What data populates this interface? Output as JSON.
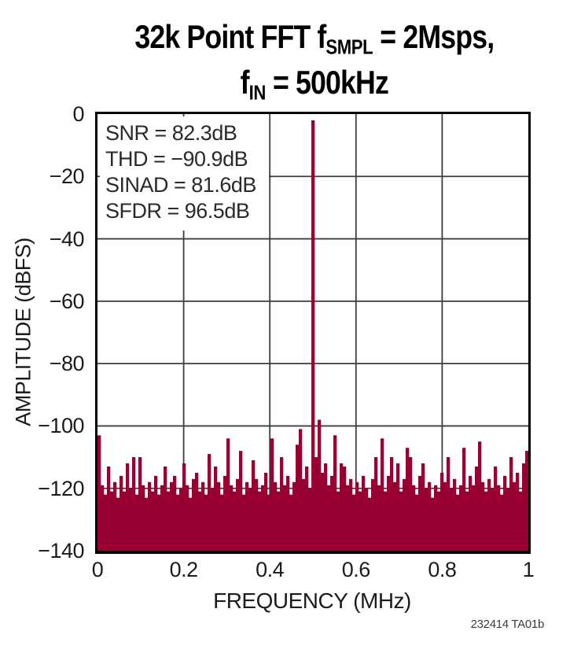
{
  "title": {
    "line1_pre": "32k Point FFT f",
    "line1_sub": "SMPL",
    "line1_post": " = 2Msps,",
    "line2_pre": "f",
    "line2_sub": "IN",
    "line2_post": " = 500kHz"
  },
  "footer": {
    "figure_number": "232414 TA01b"
  },
  "chart_data": {
    "type": "bar",
    "title": "32k Point FFT fSMPL = 2Msps, fIN = 500kHz",
    "xlabel": "FREQUENCY (MHz)",
    "ylabel": "AMPLITUDE (dBFS)",
    "xlim": [
      0,
      1
    ],
    "ylim": [
      -140,
      0
    ],
    "grid": true,
    "legend": "none",
    "xticks": [
      0,
      0.2,
      0.4,
      0.6,
      0.8,
      1
    ],
    "xtick_labels": [
      "0",
      "0.2",
      "0.4",
      "0.6",
      "0.8",
      "1"
    ],
    "yticks": [
      0,
      -20,
      -40,
      -60,
      -80,
      -100,
      -120,
      -140
    ],
    "ytick_labels": [
      "0",
      "−20",
      "−40",
      "−60",
      "−80",
      "−100",
      "−120",
      "−140"
    ],
    "grid_x": [
      0.2,
      0.4,
      0.6,
      0.8
    ],
    "grid_y": [
      -20,
      -40,
      -60,
      -80,
      -100,
      -120
    ],
    "annotations": [
      "SNR = 82.3dB",
      "THD = −90.9dB",
      "SINAD = 81.6dB",
      "SFDR = 96.5dB"
    ],
    "bar_color": "#990031",
    "grid_color": "#3d3d3d",
    "series_name": "FFT amplitude (dBFS)",
    "fundamental_mhz": 0.5,
    "fundamental_db": -2,
    "n_bins": 137,
    "values": [
      -103,
      -119,
      -122,
      -113,
      -121,
      -118,
      -123,
      -116,
      -121,
      -112,
      -120,
      -110,
      -122,
      -110,
      -119,
      -123,
      -118,
      -121,
      -116,
      -122,
      -119,
      -113,
      -121,
      -118,
      -116,
      -122,
      -120,
      -112,
      -119,
      -123,
      -117,
      -115,
      -121,
      -118,
      -122,
      -109,
      -120,
      -113,
      -118,
      -122,
      -116,
      -104,
      -119,
      -121,
      -117,
      -108,
      -122,
      -118,
      -120,
      -111,
      -117,
      -121,
      -119,
      -115,
      -122,
      -104,
      -118,
      -121,
      -110,
      -119,
      -116,
      -122,
      -118,
      -106,
      -101,
      -117,
      -113,
      -120,
      -2,
      -110,
      -98,
      -115,
      -112,
      -119,
      -116,
      -103,
      -121,
      -112,
      -113,
      -119,
      -117,
      -122,
      -118,
      -121,
      -116,
      -120,
      -123,
      -117,
      -110,
      -119,
      -104,
      -121,
      -116,
      -110,
      -118,
      -112,
      -121,
      -117,
      -107,
      -110,
      -119,
      -122,
      -116,
      -112,
      -120,
      -118,
      -123,
      -119,
      -121,
      -115,
      -118,
      -110,
      -120,
      -117,
      -122,
      -119,
      -107,
      -121,
      -116,
      -119,
      -113,
      -105,
      -118,
      -121,
      -117,
      -120,
      -113,
      -119,
      -122,
      -116,
      -120,
      -110,
      -118,
      -115,
      -121,
      -112,
      -108
    ]
  }
}
